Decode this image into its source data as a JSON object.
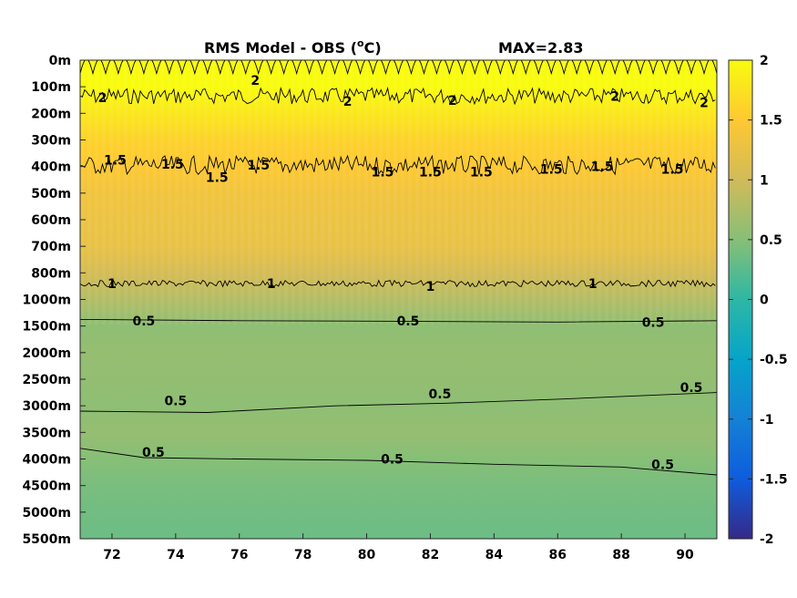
{
  "chart_data": {
    "type": "heatmap",
    "title": "RMS Model - OBS (",
    "title_unit_sup": "o",
    "title_unit_suffix": "C)",
    "max_label": "MAX=2.83",
    "xlabel": "",
    "ylabel": "",
    "x_ticks": [
      "72",
      "74",
      "76",
      "78",
      "80",
      "82",
      "84",
      "86",
      "88",
      "90"
    ],
    "x_tick_values": [
      72,
      74,
      76,
      78,
      80,
      82,
      84,
      86,
      88,
      90
    ],
    "xlim": [
      71,
      91
    ],
    "y_ticks": [
      "0m",
      "100m",
      "200m",
      "300m",
      "400m",
      "500m",
      "600m",
      "700m",
      "800m",
      "1000m",
      "1500m",
      "2000m",
      "2500m",
      "3000m",
      "3500m",
      "4000m",
      "4500m",
      "5000m",
      "5500m"
    ],
    "colorbar": {
      "ticks": [
        "2",
        "1.5",
        "1",
        "0.5",
        "0",
        "-0.5",
        "-1",
        "-1.5",
        "-2"
      ],
      "tick_values": [
        2,
        1.5,
        1,
        0.5,
        0,
        -0.5,
        -1,
        -1.5,
        -2
      ],
      "clim": [
        -2,
        2
      ],
      "colormap": "parula",
      "stops": [
        "#352a87",
        "#0f5cdd",
        "#1481d6",
        "#06a4ca",
        "#2eb7a4",
        "#87bf77",
        "#d1bb59",
        "#fec832",
        "#f9fb0e"
      ]
    },
    "band_values": [
      {
        "depth": "0m",
        "value": 2.1
      },
      {
        "depth": "100m",
        "value": 2.0
      },
      {
        "depth": "200m",
        "value": 1.8
      },
      {
        "depth": "300m",
        "value": 1.6
      },
      {
        "depth": "400m",
        "value": 1.5
      },
      {
        "depth": "500m",
        "value": 1.35
      },
      {
        "depth": "600m",
        "value": 1.3
      },
      {
        "depth": "700m",
        "value": 1.25
      },
      {
        "depth": "800m",
        "value": 1.05
      },
      {
        "depth": "1000m",
        "value": 0.8
      },
      {
        "depth": "1500m",
        "value": 0.55
      },
      {
        "depth": "2000m",
        "value": 0.6
      },
      {
        "depth": "2500m",
        "value": 0.58
      },
      {
        "depth": "3000m",
        "value": 0.55
      },
      {
        "depth": "3500m",
        "value": 0.6
      },
      {
        "depth": "4000m",
        "value": 0.5
      },
      {
        "depth": "4500m",
        "value": 0.42
      },
      {
        "depth": "5000m",
        "value": 0.38
      },
      {
        "depth": "5500m",
        "value": 0.35
      }
    ],
    "contour_labels": [
      {
        "text": "2",
        "x": 71.7,
        "depth_index": 1.4
      },
      {
        "text": "2",
        "x": 76.5,
        "depth_index": 0.75
      },
      {
        "text": "2",
        "x": 79.4,
        "depth_index": 1.55
      },
      {
        "text": "2",
        "x": 82.7,
        "depth_index": 1.5
      },
      {
        "text": "2",
        "x": 87.8,
        "depth_index": 1.35
      },
      {
        "text": "2",
        "x": 90.6,
        "depth_index": 1.6
      },
      {
        "text": "1.5",
        "x": 72.1,
        "depth_index": 3.75
      },
      {
        "text": "1.5",
        "x": 73.9,
        "depth_index": 3.9
      },
      {
        "text": "1.5",
        "x": 75.3,
        "depth_index": 4.4
      },
      {
        "text": "1.5",
        "x": 76.6,
        "depth_index": 3.95
      },
      {
        "text": "1.5",
        "x": 80.5,
        "depth_index": 4.2
      },
      {
        "text": "1.5",
        "x": 82.0,
        "depth_index": 4.2
      },
      {
        "text": "1.5",
        "x": 83.6,
        "depth_index": 4.2
      },
      {
        "text": "1.5",
        "x": 85.8,
        "depth_index": 4.1
      },
      {
        "text": "1.5",
        "x": 87.4,
        "depth_index": 4.0
      },
      {
        "text": "1.5",
        "x": 89.6,
        "depth_index": 4.1
      },
      {
        "text": "1",
        "x": 72.0,
        "depth_index": 8.4
      },
      {
        "text": "1",
        "x": 77.0,
        "depth_index": 8.4
      },
      {
        "text": "1",
        "x": 82.0,
        "depth_index": 8.5
      },
      {
        "text": "1",
        "x": 87.1,
        "depth_index": 8.4
      },
      {
        "text": "0.5",
        "x": 73.0,
        "depth_index": 9.8
      },
      {
        "text": "0.5",
        "x": 81.3,
        "depth_index": 9.8
      },
      {
        "text": "0.5",
        "x": 89.0,
        "depth_index": 9.85
      },
      {
        "text": "0.5",
        "x": 74.0,
        "depth_index": 12.8
      },
      {
        "text": "0.5",
        "x": 82.3,
        "depth_index": 12.55
      },
      {
        "text": "0.5",
        "x": 90.2,
        "depth_index": 12.3
      },
      {
        "text": "0.5",
        "x": 73.3,
        "depth_index": 14.75
      },
      {
        "text": "0.5",
        "x": 80.8,
        "depth_index": 15.0
      },
      {
        "text": "0.5",
        "x": 89.3,
        "depth_index": 15.2
      }
    ],
    "contour_lines": [
      {
        "level": 2,
        "kind": "oscillating",
        "depth_index": 0.5,
        "amplitude": 0.55,
        "wavelength": 0.4
      },
      {
        "level": 2,
        "kind": "noisy",
        "depth_index": 1.35,
        "amplitude": 0.3,
        "wavelength": 0.25
      },
      {
        "level": 1.5,
        "kind": "noisy",
        "depth_index": 3.95,
        "amplitude": 0.35,
        "wavelength": 0.2
      },
      {
        "level": 1,
        "kind": "noisy",
        "depth_index": 8.4,
        "amplitude": 0.12,
        "wavelength": 0.18
      },
      {
        "level": 0.5,
        "kind": "smooth",
        "points": [
          [
            71,
            9.75
          ],
          [
            76,
            9.8
          ],
          [
            81,
            9.82
          ],
          [
            86,
            9.85
          ],
          [
            91,
            9.8
          ]
        ]
      },
      {
        "level": 0.5,
        "kind": "smooth",
        "points": [
          [
            71,
            13.2
          ],
          [
            75,
            13.25
          ],
          [
            79,
            13.0
          ],
          [
            82.5,
            12.9
          ],
          [
            86,
            12.75
          ],
          [
            91,
            12.5
          ]
        ]
      },
      {
        "level": 0.5,
        "kind": "smooth",
        "points": [
          [
            71,
            14.6
          ],
          [
            73,
            14.95
          ],
          [
            76,
            15.0
          ],
          [
            80,
            15.05
          ],
          [
            84,
            15.2
          ],
          [
            88,
            15.3
          ],
          [
            91,
            15.6
          ]
        ]
      }
    ],
    "grid": false,
    "legend": "none"
  }
}
